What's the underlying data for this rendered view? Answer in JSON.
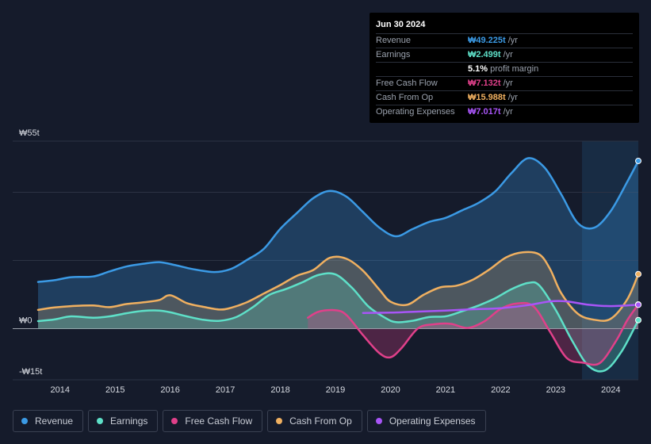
{
  "tooltip": {
    "date": "Jun 30 2024",
    "rows": [
      {
        "label": "Revenue",
        "value": "₩49.225t",
        "unit": "/yr",
        "color": "#3b9ae5"
      },
      {
        "label": "Earnings",
        "value": "₩2.499t",
        "unit": "/yr",
        "color": "#5ee0c8"
      },
      {
        "label": "",
        "value": "5.1%",
        "unit": "profit margin",
        "color": "#ffffff"
      },
      {
        "label": "Free Cash Flow",
        "value": "₩7.132t",
        "unit": "/yr",
        "color": "#e0408a"
      },
      {
        "label": "Cash From Op",
        "value": "₩15.988t",
        "unit": "/yr",
        "color": "#f0b060"
      },
      {
        "label": "Operating Expenses",
        "value": "₩7.017t",
        "unit": "/yr",
        "color": "#a855f7"
      }
    ]
  },
  "legend": [
    {
      "label": "Revenue",
      "color": "#3b9ae5"
    },
    {
      "label": "Earnings",
      "color": "#5ee0c8"
    },
    {
      "label": "Free Cash Flow",
      "color": "#e0408a"
    },
    {
      "label": "Cash From Op",
      "color": "#f0b060"
    },
    {
      "label": "Operating Expenses",
      "color": "#a855f7"
    }
  ],
  "chart_data": {
    "type": "area",
    "y_tick_labels": [
      "₩55t",
      "₩0",
      "-₩15t"
    ],
    "ylim": [
      -15,
      55
    ],
    "x_tick_labels": [
      "2014",
      "2015",
      "2016",
      "2017",
      "2018",
      "2019",
      "2020",
      "2021",
      "2022",
      "2023",
      "2024"
    ],
    "xlim": [
      2013.6,
      2024.5
    ],
    "series": [
      {
        "name": "Revenue",
        "color": "#3b9ae5",
        "x": [
          2013.6,
          2013.9,
          2014.2,
          2014.6,
          2014.9,
          2015.2,
          2015.5,
          2015.8,
          2016.1,
          2016.4,
          2016.8,
          2017.1,
          2017.4,
          2017.7,
          2018.0,
          2018.3,
          2018.6,
          2018.9,
          2019.2,
          2019.5,
          2019.8,
          2020.1,
          2020.4,
          2020.7,
          2021.0,
          2021.3,
          2021.6,
          2021.9,
          2022.2,
          2022.5,
          2022.8,
          2023.1,
          2023.4,
          2023.7,
          2024.0,
          2024.3,
          2024.5
        ],
        "values": [
          13.7,
          14.2,
          15.1,
          15.3,
          16.8,
          18.2,
          19.0,
          19.5,
          18.6,
          17.5,
          16.6,
          17.5,
          20.2,
          23.4,
          29.3,
          33.9,
          38.3,
          40.4,
          38.7,
          34.2,
          29.6,
          27.1,
          29.2,
          31.3,
          32.5,
          34.7,
          36.9,
          40.2,
          45.7,
          50.0,
          47.2,
          39.4,
          31.0,
          29.6,
          34.5,
          43.1,
          49.2
        ]
      },
      {
        "name": "Cash From Op",
        "color": "#f0b060",
        "x": [
          2013.6,
          2013.9,
          2014.2,
          2014.6,
          2014.9,
          2015.2,
          2015.5,
          2015.8,
          2016.0,
          2016.3,
          2016.6,
          2016.9,
          2017.1,
          2017.4,
          2017.7,
          2018.0,
          2018.3,
          2018.6,
          2018.9,
          2019.2,
          2019.5,
          2019.8,
          2020.0,
          2020.3,
          2020.6,
          2020.9,
          2021.2,
          2021.5,
          2021.8,
          2022.1,
          2022.4,
          2022.7,
          2022.9,
          2023.1,
          2023.4,
          2023.7,
          2024.0,
          2024.3,
          2024.5
        ],
        "values": [
          5.5,
          6.2,
          6.6,
          6.8,
          6.3,
          7.2,
          7.7,
          8.4,
          9.8,
          7.5,
          6.4,
          5.6,
          6.1,
          7.8,
          10.3,
          12.8,
          15.5,
          17.2,
          20.8,
          20.5,
          17.0,
          11.4,
          7.9,
          7.0,
          9.9,
          12.1,
          12.6,
          14.4,
          17.4,
          20.9,
          22.4,
          21.8,
          17.4,
          10.4,
          4.4,
          2.6,
          2.9,
          8.6,
          16.0
        ]
      },
      {
        "name": "Earnings",
        "color": "#5ee0c8",
        "x": [
          2013.6,
          2013.9,
          2014.2,
          2014.6,
          2014.9,
          2015.2,
          2015.5,
          2015.8,
          2016.0,
          2016.3,
          2016.6,
          2016.9,
          2017.2,
          2017.5,
          2017.8,
          2018.1,
          2018.4,
          2018.7,
          2019.0,
          2019.3,
          2019.6,
          2019.9,
          2020.1,
          2020.4,
          2020.7,
          2021.0,
          2021.3,
          2021.6,
          2021.9,
          2022.2,
          2022.5,
          2022.7,
          2023.0,
          2023.3,
          2023.6,
          2023.9,
          2024.2,
          2024.5
        ],
        "values": [
          2.2,
          2.7,
          3.6,
          3.2,
          3.6,
          4.5,
          5.2,
          5.3,
          4.8,
          3.6,
          2.6,
          2.3,
          3.4,
          6.3,
          9.9,
          11.6,
          13.6,
          15.8,
          15.9,
          12.0,
          6.5,
          3.2,
          1.9,
          2.3,
          3.4,
          3.6,
          5.1,
          6.8,
          8.9,
          11.6,
          13.4,
          12.7,
          5.5,
          -3.6,
          -11.0,
          -12.2,
          -6.6,
          2.5
        ]
      },
      {
        "name": "Free Cash Flow",
        "color": "#e0408a",
        "x": [
          2018.5,
          2018.7,
          2019.0,
          2019.2,
          2019.5,
          2019.8,
          2020.0,
          2020.2,
          2020.5,
          2020.8,
          2021.1,
          2021.4,
          2021.7,
          2022.0,
          2022.3,
          2022.6,
          2022.9,
          2023.2,
          2023.5,
          2023.8,
          2024.1,
          2024.3,
          2024.5
        ],
        "values": [
          3.2,
          5.0,
          5.4,
          4.0,
          -1.9,
          -7.2,
          -8.4,
          -5.7,
          0.1,
          1.3,
          1.4,
          0.2,
          2.1,
          5.8,
          7.4,
          6.5,
          -1.0,
          -8.6,
          -10.0,
          -10.1,
          -3.5,
          2.5,
          7.1
        ]
      },
      {
        "name": "Operating Expenses",
        "color": "#a855f7",
        "x": [
          2019.5,
          2020.0,
          2020.5,
          2021.0,
          2021.5,
          2022.0,
          2022.5,
          2022.9,
          2023.2,
          2023.6,
          2024.0,
          2024.5
        ],
        "values": [
          4.6,
          4.7,
          5.0,
          5.3,
          5.7,
          6.0,
          6.9,
          8.0,
          8.0,
          7.0,
          6.6,
          7.0
        ]
      }
    ]
  }
}
